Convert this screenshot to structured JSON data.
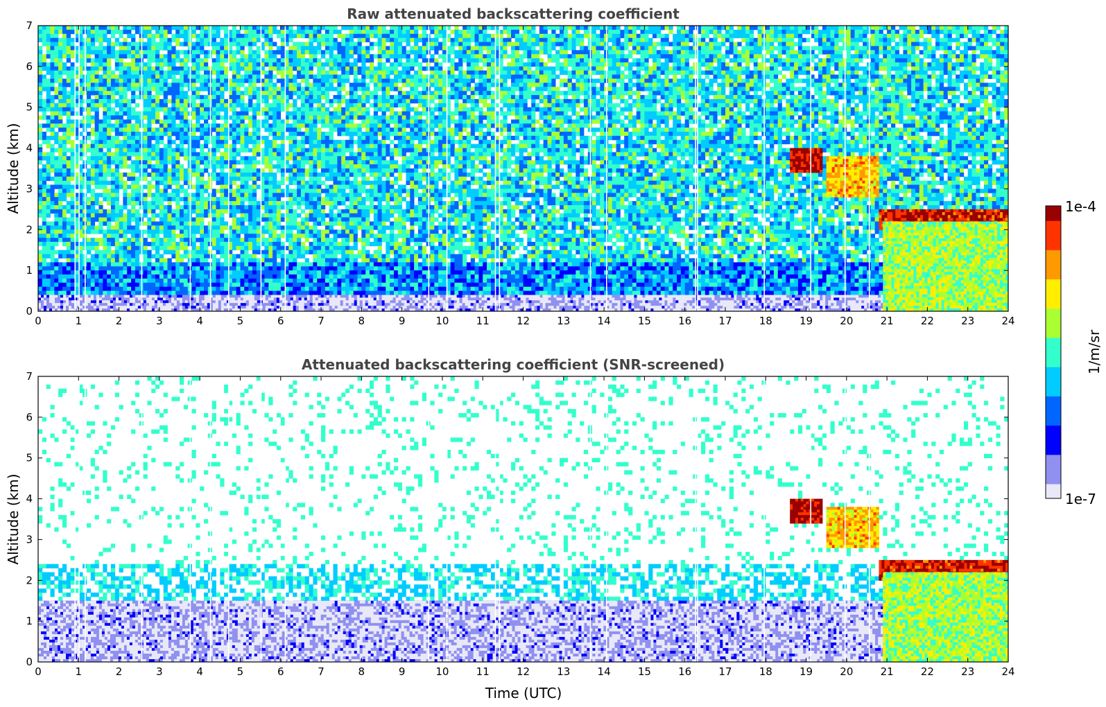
{
  "chart_data": [
    {
      "type": "heatmap",
      "title": "Raw attenuated backscattering coefficient",
      "xlabel": "",
      "ylabel": "Altitude (km)",
      "xlim": [
        0,
        24
      ],
      "ylim": [
        0,
        7
      ],
      "xticks": [
        "0",
        "1",
        "2",
        "3",
        "4",
        "5",
        "6",
        "7",
        "8",
        "9",
        "10",
        "11",
        "12",
        "13",
        "14",
        "15",
        "16",
        "17",
        "18",
        "19",
        "20",
        "21",
        "22",
        "23",
        "24"
      ],
      "yticks": [
        "0",
        "1",
        "2",
        "3",
        "4",
        "5",
        "6",
        "7"
      ],
      "features": [
        {
          "name": "surface layer",
          "x": [
            0,
            24
          ],
          "y": [
            0,
            0.4
          ],
          "level": 0.05
        },
        {
          "name": "cloud",
          "x": [
            18.6,
            19.4
          ],
          "y": [
            3.4,
            4.0
          ],
          "level": 1.0
        },
        {
          "name": "descending layer",
          "x": [
            19.5,
            20.8
          ],
          "y": [
            2.8,
            3.8
          ],
          "level": 0.75
        },
        {
          "name": "cloud base",
          "x": [
            20.8,
            24
          ],
          "y": [
            2.0,
            2.5
          ],
          "level": 0.95
        },
        {
          "name": "precipitation",
          "x": [
            20.9,
            24
          ],
          "y": [
            0,
            2.2
          ],
          "level": 0.6
        }
      ]
    },
    {
      "type": "heatmap",
      "title": "Attenuated backscattering coefficient (SNR-screened)",
      "xlabel": "Time (UTC)",
      "ylabel": "Altitude (km)",
      "xlim": [
        0,
        24
      ],
      "ylim": [
        0,
        7
      ],
      "xticks": [
        "0",
        "1",
        "2",
        "3",
        "4",
        "5",
        "6",
        "7",
        "8",
        "9",
        "10",
        "11",
        "12",
        "13",
        "14",
        "15",
        "16",
        "17",
        "18",
        "19",
        "20",
        "21",
        "22",
        "23",
        "24"
      ],
      "yticks": [
        "0",
        "1",
        "2",
        "3",
        "4",
        "5",
        "6",
        "7"
      ],
      "features": [
        {
          "name": "surface layer",
          "x": [
            0,
            24
          ],
          "y": [
            0,
            1.5
          ],
          "level": 0.05
        },
        {
          "name": "cloud",
          "x": [
            18.6,
            19.4
          ],
          "y": [
            3.4,
            4.0
          ],
          "level": 1.0
        },
        {
          "name": "descending layer",
          "x": [
            19.5,
            20.8
          ],
          "y": [
            2.8,
            3.8
          ],
          "level": 0.75
        },
        {
          "name": "cloud base",
          "x": [
            20.8,
            24
          ],
          "y": [
            2.0,
            2.5
          ],
          "level": 0.95
        },
        {
          "name": "precipitation",
          "x": [
            20.9,
            24
          ],
          "y": [
            0,
            2.2
          ],
          "level": 0.6
        }
      ]
    }
  ],
  "colorbar": {
    "label": "1/m/sr",
    "max_label": "1e-4",
    "min_label": "1e-7",
    "colors": [
      "#e8e8f8",
      "#9090f0",
      "#0000ff",
      "#0066ff",
      "#00ccff",
      "#33ffcc",
      "#aaff33",
      "#ffee00",
      "#ff9900",
      "#ff3300",
      "#990000"
    ]
  }
}
